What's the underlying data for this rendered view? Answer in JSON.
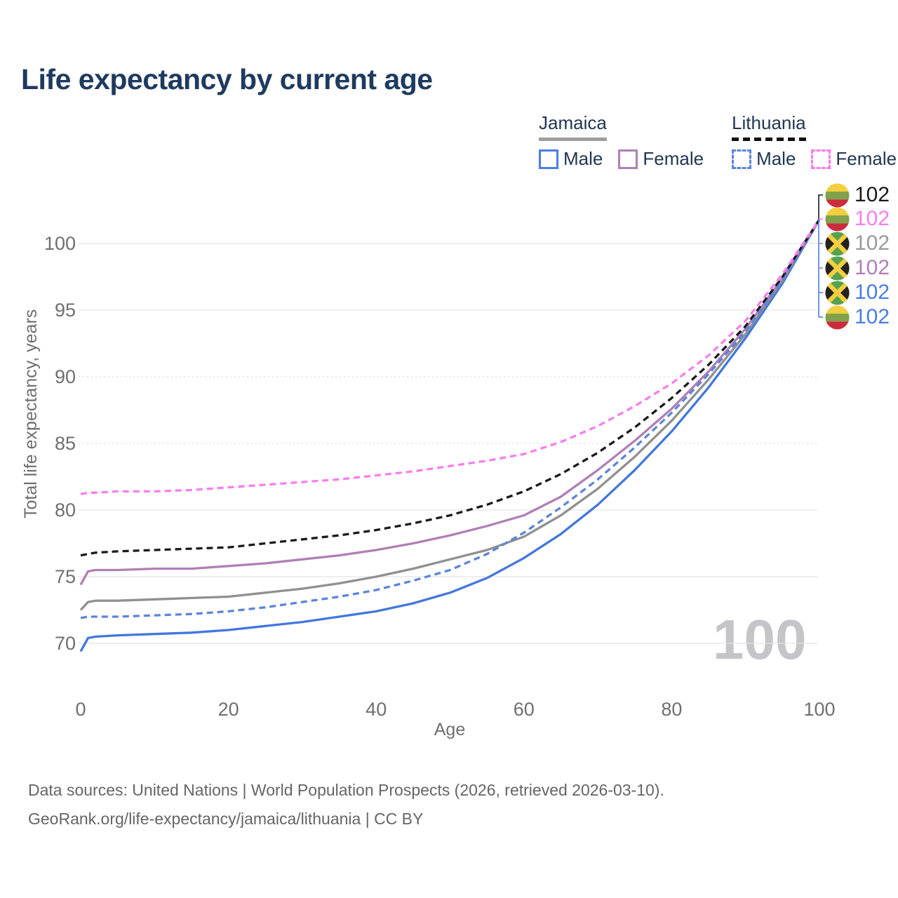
{
  "page": {
    "title": "Life expectancy by current age",
    "watermark": "100"
  },
  "legend": {
    "groups": [
      {
        "label": "Jamaica",
        "line_style": "solid",
        "underline_color": "#9e9e9e",
        "items": [
          {
            "label": "Male",
            "color": "#4b7de2",
            "style": "solid"
          },
          {
            "label": "Female",
            "color": "#b07fb5",
            "style": "solid"
          }
        ]
      },
      {
        "label": "Lithuania",
        "line_style": "dashed",
        "underline_color": "#111111",
        "items": [
          {
            "label": "Male",
            "color": "#5b84dc",
            "style": "dashed"
          },
          {
            "label": "Female",
            "color": "#fa7dec",
            "style": "dashed"
          }
        ]
      }
    ]
  },
  "chart_data": {
    "type": "line",
    "title": "Life expectancy by current age",
    "xlabel": "Age",
    "ylabel": "Total life expectancy, years",
    "xlim": [
      0,
      100
    ],
    "ylim": [
      67.5,
      103.5
    ],
    "xticks": [
      0,
      20,
      40,
      60,
      80,
      100
    ],
    "yticks": [
      70,
      75,
      80,
      85,
      90,
      95,
      100
    ],
    "dotted_gridlines": [
      85,
      90
    ],
    "grid": "horizontal",
    "legend_position": "top-right",
    "x": [
      0,
      1,
      2,
      5,
      10,
      15,
      20,
      25,
      30,
      35,
      40,
      45,
      50,
      55,
      60,
      65,
      70,
      75,
      80,
      85,
      90,
      95,
      100
    ],
    "series": [
      {
        "name": "Jamaica Male",
        "country": "Jamaica",
        "sex": "Male",
        "style": "solid",
        "color": "#4377dd",
        "values": [
          69.4,
          70.4,
          70.5,
          70.6,
          70.7,
          70.8,
          71.0,
          71.3,
          71.6,
          72.0,
          72.4,
          73.0,
          73.8,
          74.9,
          76.4,
          78.2,
          80.4,
          83.0,
          85.9,
          89.2,
          92.9,
          97.0,
          101.8
        ],
        "end_value": 102
      },
      {
        "name": "Jamaica All",
        "country": "Jamaica",
        "sex": "Both",
        "style": "solid",
        "color": "#909090",
        "values": [
          72.5,
          73.1,
          73.2,
          73.2,
          73.3,
          73.4,
          73.5,
          73.8,
          74.1,
          74.5,
          75.0,
          75.6,
          76.3,
          77.0,
          78.0,
          79.6,
          81.6,
          84.0,
          86.7,
          89.8,
          93.2,
          97.2,
          101.8
        ],
        "end_value": 102
      },
      {
        "name": "Jamaica Female",
        "country": "Jamaica",
        "sex": "Female",
        "style": "solid",
        "color": "#b07fb5",
        "values": [
          74.4,
          75.4,
          75.5,
          75.5,
          75.6,
          75.6,
          75.8,
          76.0,
          76.3,
          76.6,
          77.0,
          77.5,
          78.1,
          78.8,
          79.6,
          81.0,
          83.0,
          85.2,
          87.6,
          90.4,
          93.6,
          97.4,
          101.8
        ],
        "end_value": 102
      },
      {
        "name": "Lithuania Male",
        "country": "Lithuania",
        "sex": "Male",
        "style": "dashed",
        "color": "#5b84dc",
        "values": [
          71.9,
          72.0,
          72.0,
          72.0,
          72.1,
          72.2,
          72.4,
          72.7,
          73.1,
          73.5,
          74.0,
          74.7,
          75.5,
          76.7,
          78.3,
          80.2,
          82.3,
          84.7,
          87.3,
          90.2,
          93.4,
          97.2,
          101.8
        ],
        "end_value": 102
      },
      {
        "name": "Lithuania All",
        "country": "Lithuania",
        "sex": "Both",
        "style": "dashed",
        "color": "#1a1a1a",
        "values": [
          76.6,
          76.7,
          76.8,
          76.9,
          77.0,
          77.1,
          77.2,
          77.5,
          77.8,
          78.1,
          78.5,
          79.0,
          79.6,
          80.4,
          81.4,
          82.7,
          84.3,
          86.2,
          88.4,
          90.9,
          93.8,
          97.5,
          101.8
        ],
        "end_value": 102
      },
      {
        "name": "Lithuania Female",
        "country": "Lithuania",
        "sex": "Female",
        "style": "dashed",
        "color": "#fa7dec",
        "values": [
          81.2,
          81.3,
          81.3,
          81.4,
          81.4,
          81.5,
          81.7,
          81.9,
          82.1,
          82.3,
          82.6,
          82.9,
          83.3,
          83.7,
          84.2,
          85.1,
          86.3,
          87.8,
          89.5,
          91.6,
          94.2,
          97.7,
          101.8
        ],
        "end_value": 102
      }
    ]
  },
  "end_labels": [
    {
      "value": "102",
      "flag": "lithuania",
      "series": "Lithuania All",
      "color": "#1a1a1a"
    },
    {
      "value": "102",
      "flag": "lithuania",
      "series": "Lithuania Female",
      "color": "#fa7dec"
    },
    {
      "value": "102",
      "flag": "jamaica",
      "series": "Jamaica All",
      "color": "#9a9a9a"
    },
    {
      "value": "102",
      "flag": "jamaica",
      "series": "Jamaica Female",
      "color": "#b07fb5"
    },
    {
      "value": "102",
      "flag": "jamaica",
      "series": "Jamaica Male",
      "color": "#4b7de2"
    },
    {
      "value": "102",
      "flag": "lithuania",
      "series": "Lithuania Male",
      "color": "#4b7de2"
    }
  ],
  "flag_colors": {
    "lithuania": {
      "yellow": "#f4cf3e",
      "green": "#7fa24a",
      "red": "#cc2c3c"
    },
    "jamaica": {
      "green": "#58a14e",
      "gold": "#f5cf3f",
      "black": "#24231f"
    }
  },
  "footer": {
    "line1": "Data sources: United Nations | World Population Prospects (2026, retrieved 2026-03-10).",
    "line2": "GeoRank.org/life-expectancy/jamaica/lithuania | CC BY"
  },
  "colors": {
    "title": "#1e3a5f",
    "legend_text": "#223650",
    "axis_text": "#6f6f6f",
    "grid": "#e4e4e4",
    "grid_dotted": "#dadada",
    "watermark": "#c4c4c9",
    "footer": "#656565"
  }
}
